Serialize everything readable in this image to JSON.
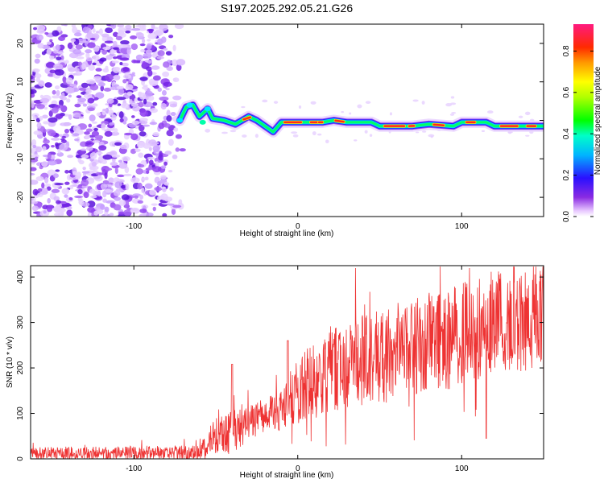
{
  "title": "S197.2025.292.05.21.G26",
  "chart_data": [
    {
      "type": "heatmap",
      "xlabel": "Height of straight line (km)",
      "ylabel": "Frequency (Hz)",
      "xlim": [
        -163,
        150
      ],
      "ylim": [
        -25,
        25
      ],
      "xticks": [
        -100,
        0,
        100
      ],
      "yticks": [
        -20,
        -10,
        0,
        10,
        20
      ],
      "noise_region_x": [
        -163,
        -72
      ],
      "ridge": [
        {
          "x": -72,
          "y": 0
        },
        {
          "x": -68,
          "y": 3.5
        },
        {
          "x": -64,
          "y": 4
        },
        {
          "x": -60,
          "y": 1
        },
        {
          "x": -55,
          "y": 3
        },
        {
          "x": -52,
          "y": 0.5
        },
        {
          "x": -45,
          "y": 0
        },
        {
          "x": -38,
          "y": -1
        },
        {
          "x": -30,
          "y": 1
        },
        {
          "x": -25,
          "y": 0
        },
        {
          "x": -20,
          "y": -1.5
        },
        {
          "x": -15,
          "y": -3
        },
        {
          "x": -10,
          "y": -0.5
        },
        {
          "x": 0,
          "y": -0.5
        },
        {
          "x": 15,
          "y": -0.5
        },
        {
          "x": 22,
          "y": 0
        },
        {
          "x": 30,
          "y": -0.5
        },
        {
          "x": 45,
          "y": -0.5
        },
        {
          "x": 50,
          "y": -1.5
        },
        {
          "x": 70,
          "y": -1.5
        },
        {
          "x": 80,
          "y": -1
        },
        {
          "x": 95,
          "y": -1.5
        },
        {
          "x": 100,
          "y": -0.5
        },
        {
          "x": 115,
          "y": -0.5
        },
        {
          "x": 120,
          "y": -1.5
        },
        {
          "x": 150,
          "y": -1.5
        }
      ]
    },
    {
      "type": "line",
      "xlabel": "Height of straight line (km)",
      "ylabel": "SNR (10 * v/v)",
      "xlim": [
        -163,
        150
      ],
      "ylim": [
        0,
        425
      ],
      "xticks": [
        -100,
        0,
        100
      ],
      "yticks": [
        0,
        100,
        200,
        300,
        400
      ],
      "color": "#ee3333",
      "envelope": [
        {
          "x": -163,
          "base": 12,
          "spread": 14
        },
        {
          "x": -63,
          "base": 14,
          "spread": 16
        },
        {
          "x": -50,
          "base": 50,
          "spread": 40
        },
        {
          "x": -40,
          "base": 70,
          "spread": 60
        },
        {
          "x": -30,
          "base": 80,
          "spread": 40
        },
        {
          "x": -20,
          "base": 95,
          "spread": 40
        },
        {
          "x": -8,
          "base": 115,
          "spread": 50
        },
        {
          "x": 0,
          "base": 150,
          "spread": 80
        },
        {
          "x": 20,
          "base": 195,
          "spread": 90
        },
        {
          "x": 50,
          "base": 225,
          "spread": 110
        },
        {
          "x": 80,
          "base": 255,
          "spread": 110
        },
        {
          "x": 110,
          "base": 285,
          "spread": 120
        },
        {
          "x": 150,
          "base": 320,
          "spread": 120
        }
      ]
    }
  ],
  "colorbar": {
    "label": "Normalized spectral amplitude",
    "min": 0.0,
    "max": 0.93,
    "ticks": [
      0.0,
      0.2,
      0.4,
      0.6,
      0.8
    ],
    "tick_labels": [
      "0.0",
      "0.2",
      "0.4",
      "0.6",
      "0.8"
    ]
  }
}
